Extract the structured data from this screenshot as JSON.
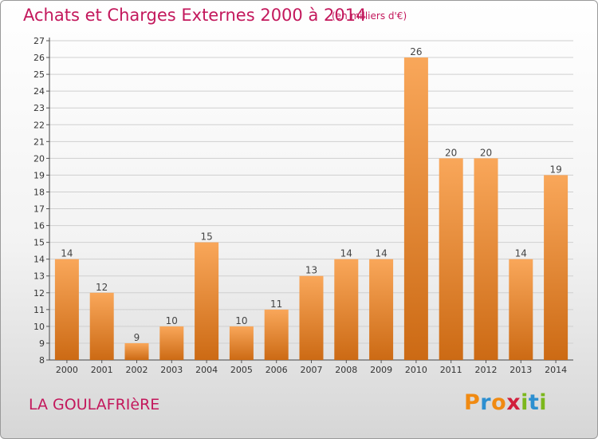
{
  "header": {
    "title": "Achats et Charges Externes 2000 à 2014",
    "subtitle": "(en milliers d'€)"
  },
  "footer": {
    "place": "LA GOULAFRIèRE",
    "logo": "Proxiti"
  },
  "colors": {
    "title": "#c3185c",
    "bar_light": "#f9a75a",
    "bar_dark": "#cc6a14",
    "grid": "#cfcfcf"
  },
  "chart_data": {
    "type": "bar",
    "categories": [
      "2000",
      "2001",
      "2002",
      "2003",
      "2004",
      "2005",
      "2006",
      "2007",
      "2008",
      "2009",
      "2010",
      "2011",
      "2012",
      "2013",
      "2014"
    ],
    "values": [
      14,
      12,
      9,
      10,
      15,
      10,
      11,
      13,
      14,
      14,
      26,
      20,
      20,
      14,
      19
    ],
    "ylim": [
      8,
      27
    ],
    "yticks": [
      8,
      9,
      10,
      11,
      12,
      13,
      14,
      15,
      16,
      17,
      18,
      19,
      20,
      21,
      22,
      23,
      24,
      25,
      26,
      27
    ],
    "grid": "horizontal",
    "data_labels": true
  }
}
